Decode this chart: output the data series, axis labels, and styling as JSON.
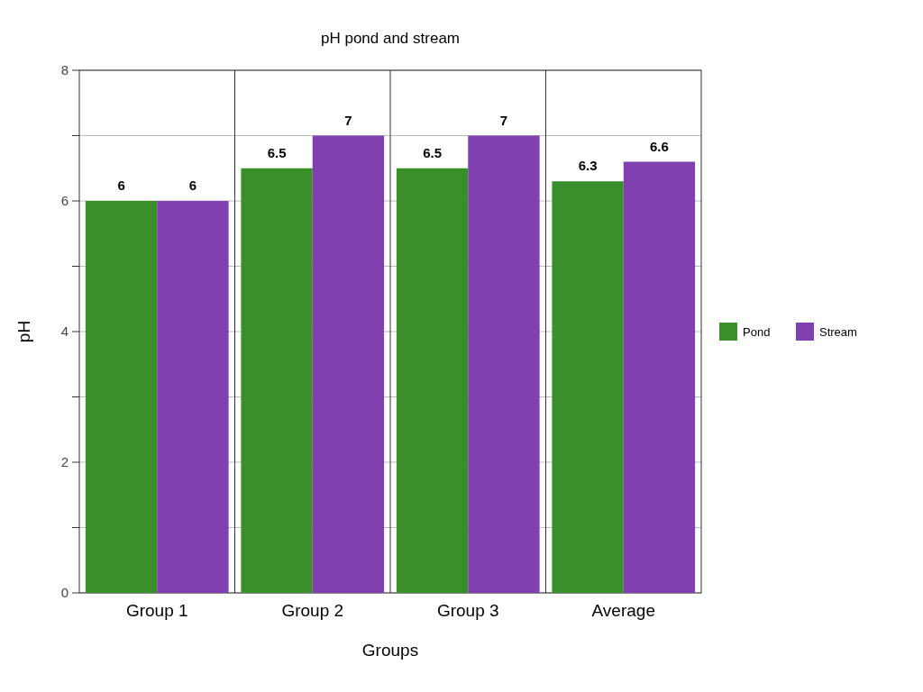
{
  "chart_data": {
    "type": "bar",
    "title": "pH pond and stream",
    "xlabel": "Groups",
    "ylabel": "pH",
    "categories": [
      "Group 1",
      "Group 2",
      "Group 3",
      "Average"
    ],
    "series": [
      {
        "name": "Pond",
        "color": "#3a8f2a",
        "values": [
          6,
          6.5,
          6.5,
          6.3
        ]
      },
      {
        "name": "Stream",
        "color": "#8040b0",
        "values": [
          6,
          7,
          7,
          6.6
        ]
      }
    ],
    "ylim": [
      0,
      8
    ],
    "yticks": [
      0,
      {
        "value": 1,
        "label": null
      },
      2,
      {
        "value": 3,
        "label": null
      },
      4,
      {
        "value": 5,
        "label": null
      },
      6,
      {
        "value": 7,
        "label": null
      },
      8
    ],
    "grid": true,
    "legend": "right",
    "data_labels": true
  }
}
